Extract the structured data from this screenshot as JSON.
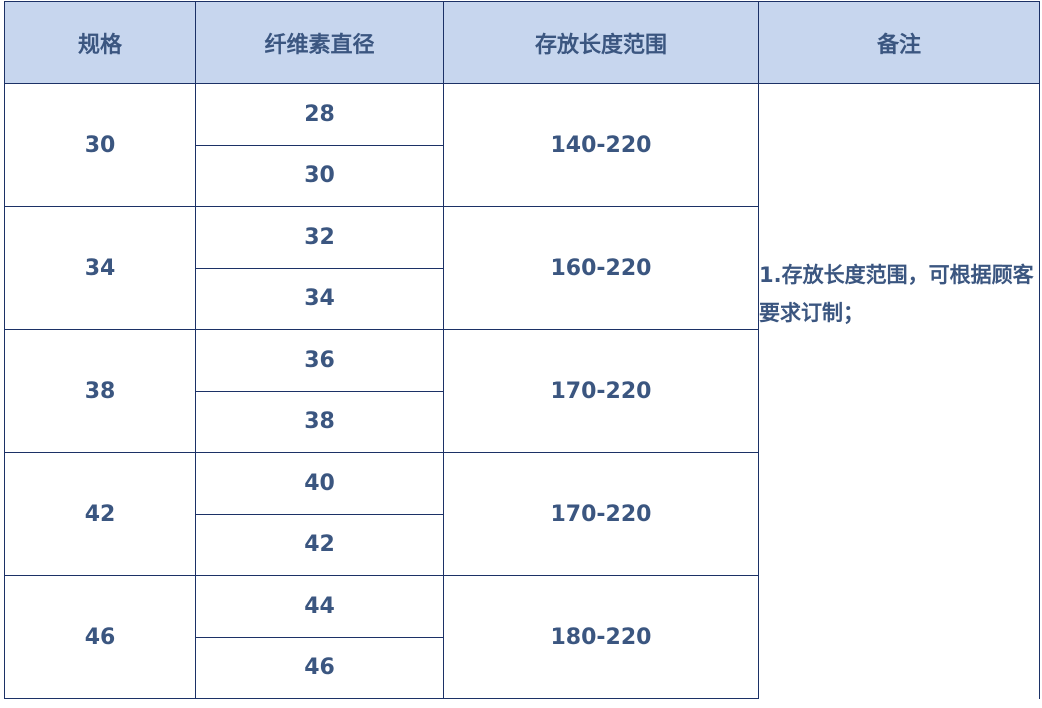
{
  "headers": [
    "规格",
    "纤维素直径",
    "存放长度范围",
    "备注"
  ],
  "rows": [
    {
      "spec": "30",
      "diameters": [
        "28",
        "30"
      ],
      "length_range": "140-220"
    },
    {
      "spec": "34",
      "diameters": [
        "32",
        "34"
      ],
      "length_range": "160-220"
    },
    {
      "spec": "38",
      "diameters": [
        "36",
        "38"
      ],
      "length_range": "170-220"
    },
    {
      "spec": "42",
      "diameters": [
        "40",
        "42"
      ],
      "length_range": "170-220"
    },
    {
      "spec": "46",
      "diameters": [
        "44",
        "46"
      ],
      "length_range": "180-220"
    }
  ],
  "note": "1.存放长度范围，可根据顾客要求订制；",
  "colors": {
    "header_bg": "#c7d6ee",
    "text": "#3b5680",
    "border": "#1c3166"
  }
}
